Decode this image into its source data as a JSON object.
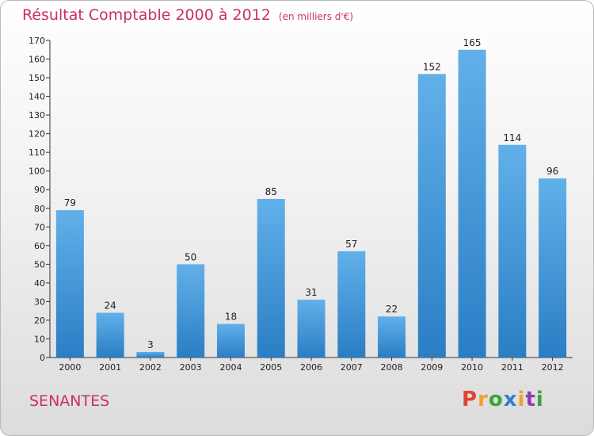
{
  "header": {
    "title": "Résultat Comptable 2000 à 2012",
    "subtitle": "(en milliers d'€)"
  },
  "footer": {
    "commune": "SENANTES",
    "logo_text": "Proxiti"
  },
  "colors": {
    "title": "#c8325a",
    "bar_top": "#62b0ea",
    "bar_bottom": "#2a7ec4"
  },
  "chart_data": {
    "type": "bar",
    "title": "Résultat Comptable 2000 à 2012",
    "subtitle": "(en milliers d'€)",
    "categories": [
      "2000",
      "2001",
      "2002",
      "2003",
      "2004",
      "2005",
      "2006",
      "2007",
      "2008",
      "2009",
      "2010",
      "2011",
      "2012"
    ],
    "values": [
      79,
      24,
      3,
      50,
      18,
      85,
      31,
      57,
      22,
      152,
      165,
      114,
      96
    ],
    "ylim": [
      0,
      170
    ],
    "yticks": [
      0,
      10,
      20,
      30,
      40,
      50,
      60,
      70,
      80,
      90,
      100,
      110,
      120,
      130,
      140,
      150,
      160,
      170
    ],
    "grid": false,
    "data_labels": true
  }
}
